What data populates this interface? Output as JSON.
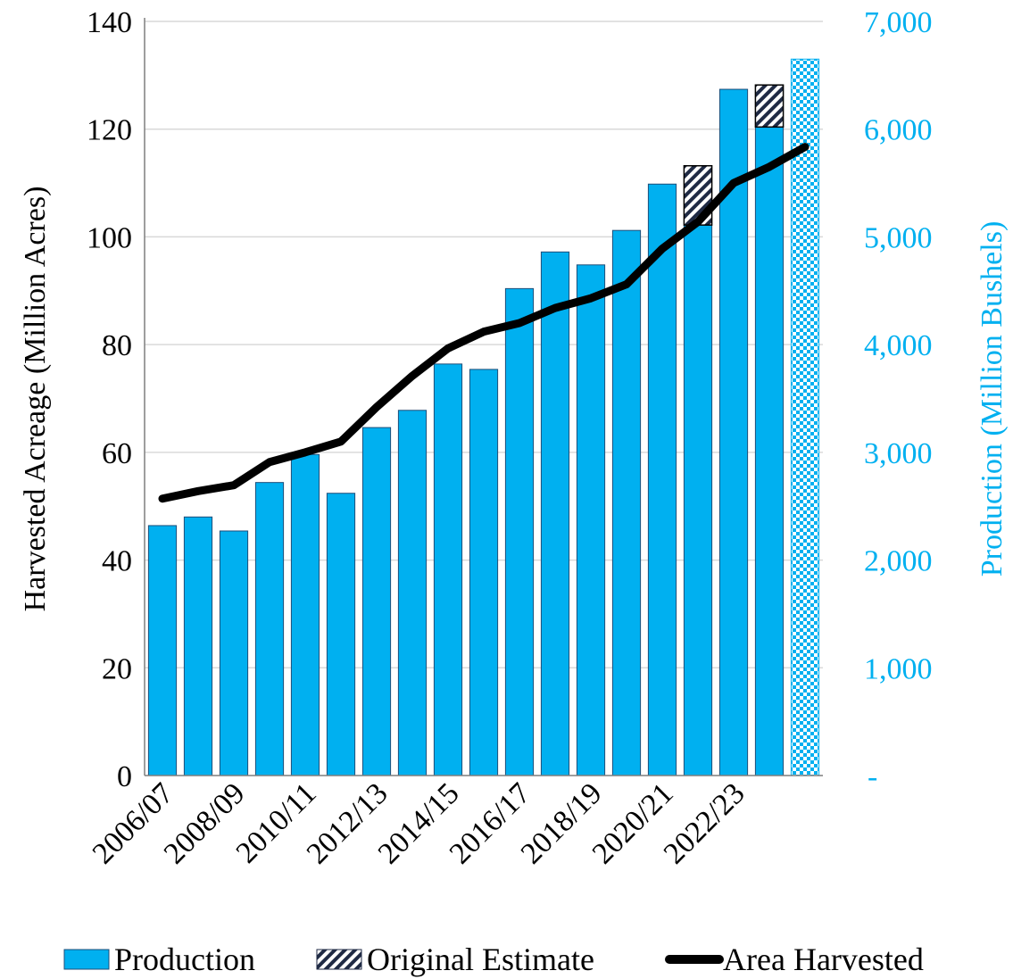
{
  "chart_data": {
    "type": "bar",
    "categories": [
      "2006/07",
      "2007/08",
      "2008/09",
      "2009/10",
      "2010/11",
      "2011/12",
      "2012/13",
      "2013/14",
      "2014/15",
      "2015/16",
      "2016/17",
      "2017/18",
      "2018/19",
      "2019/20",
      "2020/21",
      "2021/22",
      "2022/23",
      "2023/24",
      "2024/25"
    ],
    "x_tick_labels": [
      "2006/07",
      "2008/09",
      "2010/11",
      "2012/13",
      "2014/15",
      "2016/17",
      "2018/19",
      "2020/21",
      "2022/23"
    ],
    "series": [
      {
        "name": "Production",
        "axis": "right",
        "values": [
          2320,
          2400,
          2270,
          2720,
          2980,
          2620,
          3230,
          3390,
          3820,
          3770,
          4520,
          4860,
          4740,
          5060,
          5490,
          5110,
          6370,
          6020,
          6650
        ],
        "note_last_bar": "checkered pattern"
      },
      {
        "name": "Original Estimate",
        "axis": "right",
        "segments": [
          {
            "category": "2021/22",
            "from": 5110,
            "to": 5660
          },
          {
            "category": "2023/24",
            "from": 6020,
            "to": 6410
          }
        ]
      },
      {
        "name": "Area Harvested",
        "axis": "left",
        "type": "line",
        "values": [
          51.4,
          52.8,
          53.9,
          58.2,
          60.0,
          62.0,
          68.4,
          74.2,
          79.3,
          82.4,
          84.0,
          86.8,
          88.6,
          91.2,
          97.8,
          102.8,
          110.0,
          113.0,
          116.7
        ]
      }
    ],
    "ylabel": "Harvested Acreage (Million Acres)",
    "ylim": [
      0,
      140
    ],
    "yticks": [
      "0",
      "20",
      "40",
      "60",
      "80",
      "100",
      "120",
      "140"
    ],
    "y2label": "Production (Million Bushels)",
    "y2lim": [
      0,
      7000
    ],
    "y2ticks": [
      "-",
      "1,000",
      "2,000",
      "3,000",
      "4,000",
      "5,000",
      "6,000",
      "7,000"
    ],
    "grid": true,
    "legend_position": "bottom",
    "colors": {
      "bar": "#00b0f0",
      "bar_edge": "#1f4e79",
      "line": "#000000",
      "right_axis": "#00b0f0",
      "grid": "#d9d9d9",
      "hatch": "#1f2a44"
    }
  }
}
